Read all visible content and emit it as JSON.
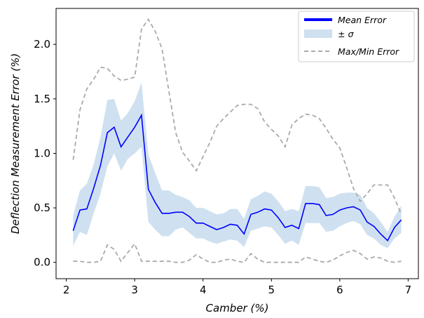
{
  "chart_data": {
    "type": "line",
    "xlabel": "Camber (%)",
    "ylabel": "Deflection Measurement Error (%)",
    "xlim": [
      1.85,
      7.15
    ],
    "ylim": [
      -0.15,
      2.33
    ],
    "xticks": [
      2,
      3,
      4,
      5,
      6,
      7
    ],
    "xtick_labels": [
      "2",
      "3",
      "4",
      "5",
      "6",
      "7"
    ],
    "yticks": [
      0.0,
      0.5,
      1.0,
      1.5,
      2.0
    ],
    "ytick_labels": [
      "0.0",
      "0.5",
      "1.0",
      "1.5",
      "2.0"
    ],
    "grid": false,
    "legend_position": "top-right",
    "x": [
      2.1,
      2.2,
      2.3,
      2.4,
      2.5,
      2.6,
      2.7,
      2.8,
      2.9,
      3.0,
      3.1,
      3.2,
      3.3,
      3.4,
      3.5,
      3.6,
      3.7,
      3.8,
      3.9,
      4.0,
      4.1,
      4.2,
      4.3,
      4.4,
      4.5,
      4.6,
      4.7,
      4.8,
      4.9,
      5.0,
      5.1,
      5.2,
      5.3,
      5.4,
      5.5,
      5.6,
      5.7,
      5.8,
      5.9,
      6.0,
      6.1,
      6.2,
      6.3,
      6.4,
      6.5,
      6.6,
      6.7,
      6.8,
      6.9
    ],
    "series": [
      {
        "name": "Mean Error",
        "style": "solid",
        "color": "#0000ff",
        "values": [
          0.29,
          0.48,
          0.49,
          0.68,
          0.89,
          1.19,
          1.24,
          1.06,
          1.15,
          1.24,
          1.35,
          0.67,
          0.55,
          0.45,
          0.45,
          0.46,
          0.46,
          0.42,
          0.36,
          0.36,
          0.33,
          0.3,
          0.32,
          0.35,
          0.34,
          0.26,
          0.44,
          0.46,
          0.49,
          0.48,
          0.41,
          0.32,
          0.34,
          0.31,
          0.54,
          0.54,
          0.53,
          0.43,
          0.44,
          0.48,
          0.5,
          0.51,
          0.48,
          0.37,
          0.33,
          0.26,
          0.2,
          0.32,
          0.39
        ]
      },
      {
        "name": "± σ",
        "style": "band",
        "color": "#a8c8e4",
        "lower": [
          0.15,
          0.28,
          0.25,
          0.45,
          0.63,
          0.88,
          1.0,
          0.84,
          0.95,
          1.0,
          1.06,
          0.37,
          0.3,
          0.24,
          0.24,
          0.3,
          0.32,
          0.27,
          0.22,
          0.22,
          0.19,
          0.17,
          0.19,
          0.21,
          0.2,
          0.14,
          0.29,
          0.31,
          0.33,
          0.32,
          0.25,
          0.17,
          0.2,
          0.16,
          0.36,
          0.36,
          0.36,
          0.28,
          0.29,
          0.33,
          0.36,
          0.38,
          0.35,
          0.25,
          0.22,
          0.16,
          0.13,
          0.22,
          0.27
        ],
        "upper": [
          0.43,
          0.66,
          0.72,
          0.9,
          1.15,
          1.49,
          1.5,
          1.3,
          1.37,
          1.48,
          1.65,
          0.99,
          0.82,
          0.66,
          0.66,
          0.62,
          0.6,
          0.57,
          0.5,
          0.5,
          0.47,
          0.44,
          0.45,
          0.49,
          0.49,
          0.4,
          0.58,
          0.61,
          0.65,
          0.63,
          0.56,
          0.47,
          0.49,
          0.47,
          0.7,
          0.7,
          0.69,
          0.59,
          0.6,
          0.63,
          0.64,
          0.64,
          0.62,
          0.5,
          0.45,
          0.37,
          0.28,
          0.42,
          0.52
        ]
      },
      {
        "name": "Max/Min Error",
        "style": "dashed",
        "color": "#aaaaaa",
        "max": [
          0.94,
          1.4,
          1.59,
          1.68,
          1.79,
          1.78,
          1.71,
          1.67,
          1.68,
          1.7,
          2.14,
          2.23,
          2.12,
          1.96,
          1.57,
          1.19,
          1.01,
          0.93,
          0.84,
          0.97,
          1.1,
          1.25,
          1.32,
          1.38,
          1.44,
          1.45,
          1.45,
          1.41,
          1.29,
          1.22,
          1.16,
          1.06,
          1.26,
          1.32,
          1.36,
          1.35,
          1.32,
          1.23,
          1.13,
          1.05,
          0.87,
          0.68,
          0.56,
          0.63,
          0.71,
          0.71,
          0.71,
          0.59,
          0.44
        ],
        "min": [
          0.01,
          0.01,
          0.0,
          0.0,
          0.01,
          0.16,
          0.12,
          0.01,
          0.09,
          0.17,
          0.01,
          0.01,
          0.01,
          0.01,
          0.01,
          0.0,
          0.0,
          0.02,
          0.07,
          0.03,
          0.0,
          0.0,
          0.02,
          0.03,
          0.01,
          0.0,
          0.08,
          0.03,
          0.0,
          0.0,
          0.0,
          0.0,
          0.0,
          0.0,
          0.05,
          0.03,
          0.01,
          0.0,
          0.02,
          0.06,
          0.09,
          0.11,
          0.08,
          0.03,
          0.05,
          0.04,
          0.01,
          0.0,
          0.01
        ]
      }
    ]
  }
}
